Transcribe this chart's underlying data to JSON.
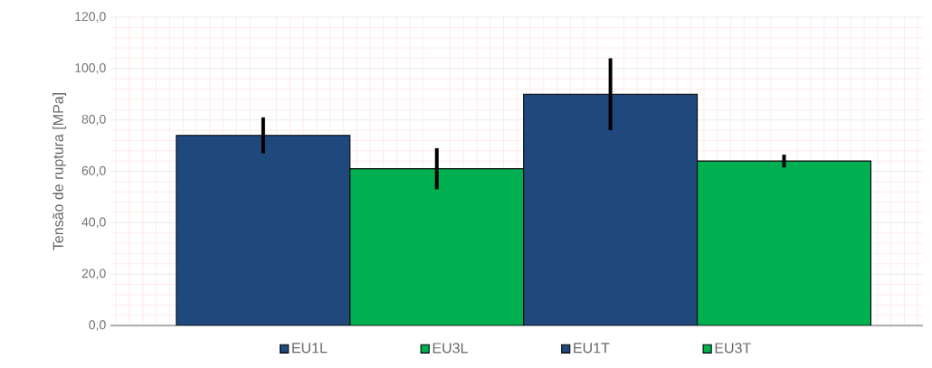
{
  "chart_data": {
    "type": "bar",
    "ylabel": "Tensão de ruptura [MPa]",
    "categories": [
      null,
      null,
      null,
      null
    ],
    "series": [
      {
        "name": "EU1L",
        "color": "#1f497d",
        "values": [
          74,
          null,
          null,
          null
        ],
        "errors": [
          7,
          null,
          null,
          null
        ]
      },
      {
        "name": "EU3L",
        "color": "#00b050",
        "values": [
          null,
          61,
          null,
          null
        ],
        "errors": [
          null,
          8,
          null,
          null
        ]
      },
      {
        "name": "EU1T",
        "color": "#1f497d",
        "values": [
          null,
          null,
          90,
          null
        ],
        "errors": [
          null,
          null,
          14,
          null
        ]
      },
      {
        "name": "EU3T",
        "color": "#00b050",
        "values": [
          null,
          null,
          null,
          64
        ],
        "errors": [
          null,
          null,
          null,
          2.5
        ]
      }
    ],
    "ylim": [
      0,
      120
    ],
    "yticks": [
      {
        "value": 0,
        "label": "0,0"
      },
      {
        "value": 20,
        "label": "20,0"
      },
      {
        "value": 40,
        "label": "40,0"
      },
      {
        "value": 60,
        "label": "60,0"
      },
      {
        "value": 80,
        "label": "80,0"
      },
      {
        "value": 100,
        "label": "100,0"
      },
      {
        "value": 120,
        "label": "120,0"
      }
    ],
    "grid": true,
    "legend": "bottom",
    "tick_labels": "y"
  }
}
